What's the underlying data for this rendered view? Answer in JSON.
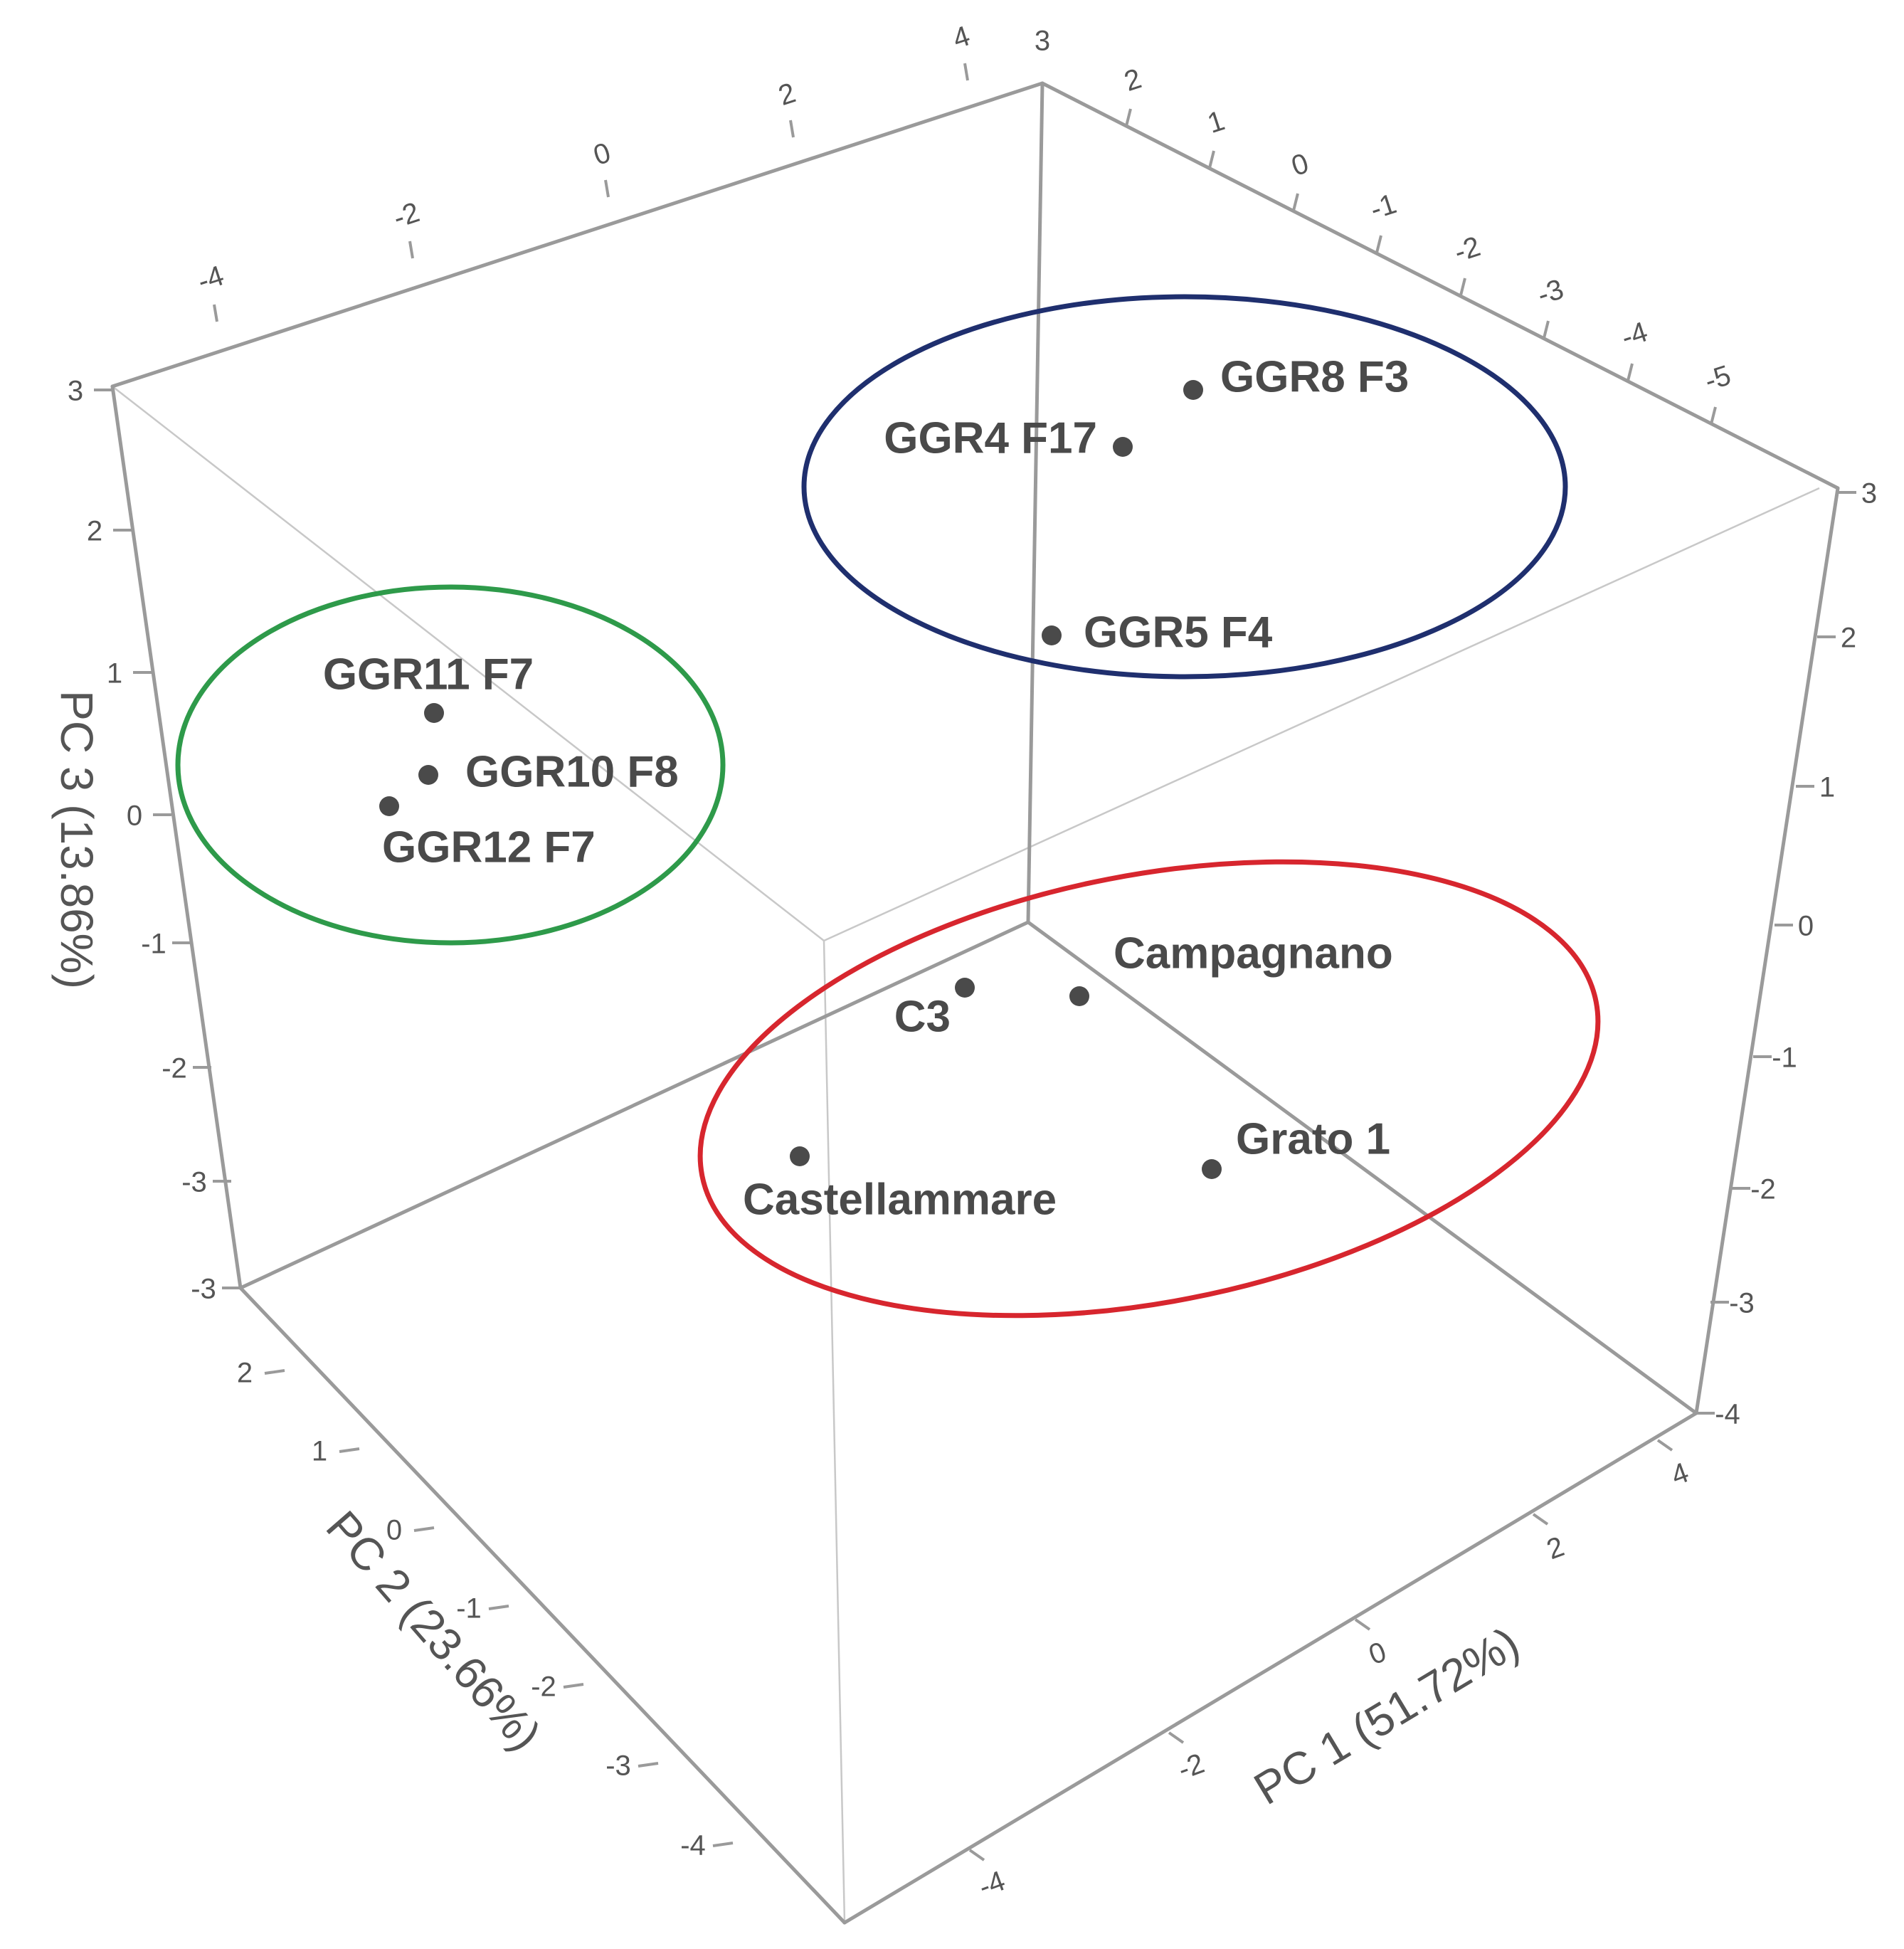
{
  "chart_data": {
    "type": "scatter",
    "dimensions": 3,
    "title": "",
    "axes": {
      "x": {
        "label": "PC 1 (51.72%)",
        "range": [
          -4,
          5
        ],
        "ticks": [
          -4,
          -2,
          0,
          2,
          4
        ]
      },
      "y": {
        "label": "PC 2 (23.66%)",
        "range": [
          -5,
          3
        ],
        "ticks": [
          -4,
          -3,
          -2,
          -1,
          0,
          1,
          2
        ]
      },
      "z": {
        "label": "PC 3 (13.86%)",
        "range": [
          -3,
          3
        ],
        "ticks": [
          -3,
          -2,
          -1,
          0,
          1,
          2,
          3
        ]
      }
    },
    "top_edge_ticks": [
      "-4",
      "-2",
      "0",
      "2",
      "4"
    ],
    "right_top_edge_ticks": [
      "2",
      "1",
      "0",
      "-1",
      "-2",
      "-3",
      "-4",
      "-5"
    ],
    "left_z_ticks": [
      "3",
      "2",
      "1",
      "0",
      "-1",
      "-2",
      "-3",
      "-3"
    ],
    "right_z_ticks": [
      "3",
      "2",
      "1",
      "0",
      "-1",
      "-2",
      "-3",
      "-4"
    ],
    "top_corner_tick": "3",
    "points": [
      {
        "label": "GGR8 F3",
        "group": "blue"
      },
      {
        "label": "GGR4 F17",
        "group": "blue"
      },
      {
        "label": "GGR5 F4",
        "group": "blue"
      },
      {
        "label": "GGR11 F7",
        "group": "green"
      },
      {
        "label": "GGR10 F8",
        "group": "green"
      },
      {
        "label": "GGR12 F7",
        "group": "green"
      },
      {
        "label": "Campagnano",
        "group": "red"
      },
      {
        "label": "C3",
        "group": "red"
      },
      {
        "label": "Castellammare",
        "group": "red"
      },
      {
        "label": "Grato 1",
        "group": "red"
      }
    ],
    "groups": [
      {
        "id": "blue",
        "color": "#1f2f6e"
      },
      {
        "id": "green",
        "color": "#2e9a4a"
      },
      {
        "id": "red",
        "color": "#d7262e"
      }
    ],
    "grid": false,
    "legend": "none"
  }
}
